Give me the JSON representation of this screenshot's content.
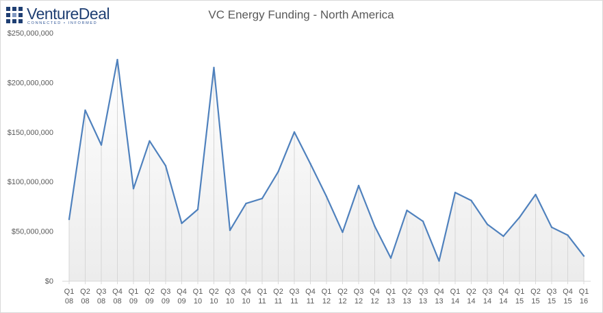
{
  "logo": {
    "name": "VentureDeal",
    "tagline": "CONNECTED • INFORMED",
    "brand_color": "#1f3f73",
    "accent_color": "#2f5597"
  },
  "chart_data": {
    "type": "area",
    "title": "VC Energy Funding - North America",
    "xlabel": "",
    "ylabel": "",
    "ylim": [
      0,
      250000000
    ],
    "y_ticks": [
      "$0",
      "$50,000,000",
      "$100,000,000",
      "$150,000,000",
      "$200,000,000",
      "$250,000,000"
    ],
    "y_tick_values": [
      0,
      50000000,
      100000000,
      150000000,
      200000000,
      250000000
    ],
    "categories": [
      [
        "Q1",
        "08"
      ],
      [
        "Q2",
        "08"
      ],
      [
        "Q3",
        "08"
      ],
      [
        "Q4",
        "08"
      ],
      [
        "Q1",
        "09"
      ],
      [
        "Q2",
        "09"
      ],
      [
        "Q3",
        "09"
      ],
      [
        "Q4",
        "09"
      ],
      [
        "Q1",
        "10"
      ],
      [
        "Q2",
        "10"
      ],
      [
        "Q3",
        "10"
      ],
      [
        "Q4",
        "10"
      ],
      [
        "Q1",
        "11"
      ],
      [
        "Q2",
        "11"
      ],
      [
        "Q3",
        "11"
      ],
      [
        "Q4",
        "11"
      ],
      [
        "Q1",
        "12"
      ],
      [
        "Q2",
        "12"
      ],
      [
        "Q3",
        "12"
      ],
      [
        "Q4",
        "12"
      ],
      [
        "Q1",
        "13"
      ],
      [
        "Q2",
        "13"
      ],
      [
        "Q3",
        "13"
      ],
      [
        "Q4",
        "13"
      ],
      [
        "Q1",
        "14"
      ],
      [
        "Q2",
        "14"
      ],
      [
        "Q3",
        "14"
      ],
      [
        "Q4",
        "14"
      ],
      [
        "Q1",
        "15"
      ],
      [
        "Q2",
        "15"
      ],
      [
        "Q3",
        "15"
      ],
      [
        "Q4",
        "15"
      ],
      [
        "Q1",
        "16"
      ]
    ],
    "values": [
      62000000,
      172000000,
      137000000,
      223000000,
      93000000,
      141000000,
      116000000,
      58000000,
      72000000,
      215000000,
      51000000,
      78000000,
      83000000,
      110000000,
      150000000,
      118000000,
      85000000,
      49000000,
      96000000,
      55000000,
      23000000,
      71000000,
      60000000,
      20000000,
      89000000,
      81000000,
      57000000,
      45000000,
      64000000,
      87000000,
      54000000,
      46000000,
      25000000
    ],
    "line_color": "#4f81bd",
    "fill_gradient": [
      "#ffffff",
      "#ececec"
    ],
    "drop_lines_color": "#d6d6d6",
    "grid": false,
    "legend": "none"
  }
}
